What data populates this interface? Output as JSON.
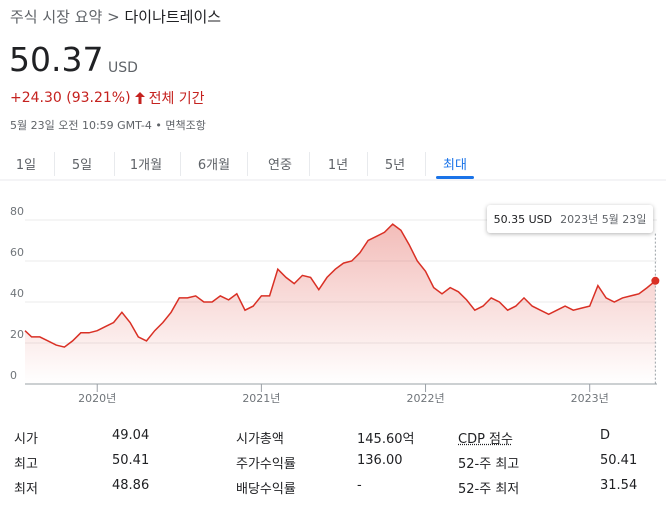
{
  "breadcrumb": {
    "parent": "주식 시장 요약",
    "separator": ">",
    "current": "다이나트레이스"
  },
  "quote": {
    "price": "50.37",
    "currency": "USD",
    "change": "+24.30 (93.21%)",
    "period": "전체 기간",
    "timestamp": "5월 23일 오전 10:59 GMT-4",
    "separator": "•",
    "disclaimer": "면책조항"
  },
  "tabs": [
    "1일",
    "5일",
    "1개월",
    "6개월",
    "연중",
    "1년",
    "5년",
    "최대"
  ],
  "active_tab": 7,
  "chart_data": {
    "type": "line",
    "color": "#d93025",
    "grid": true,
    "x": [
      2019.56,
      2019.6,
      2019.65,
      2019.7,
      2019.75,
      2019.8,
      2019.85,
      2019.9,
      2019.95,
      2020.0,
      2020.05,
      2020.1,
      2020.15,
      2020.2,
      2020.25,
      2020.3,
      2020.35,
      2020.4,
      2020.45,
      2020.5,
      2020.55,
      2020.6,
      2020.65,
      2020.7,
      2020.75,
      2020.8,
      2020.85,
      2020.9,
      2020.95,
      2021.0,
      2021.05,
      2021.1,
      2021.15,
      2021.2,
      2021.25,
      2021.3,
      2021.35,
      2021.4,
      2021.45,
      2021.5,
      2021.55,
      2021.6,
      2021.65,
      2021.7,
      2021.75,
      2021.8,
      2021.85,
      2021.9,
      2021.95,
      2022.0,
      2022.05,
      2022.1,
      2022.15,
      2022.2,
      2022.25,
      2022.3,
      2022.35,
      2022.4,
      2022.45,
      2022.5,
      2022.55,
      2022.6,
      2022.65,
      2022.7,
      2022.75,
      2022.8,
      2022.85,
      2022.9,
      2022.95,
      2023.0,
      2023.05,
      2023.1,
      2023.15,
      2023.2,
      2023.25,
      2023.3,
      2023.35,
      2023.4
    ],
    "values": [
      26,
      23,
      23,
      21,
      19,
      18,
      21,
      25,
      25,
      26,
      28,
      30,
      35,
      30,
      23,
      21,
      26,
      30,
      35,
      42,
      42,
      43,
      40,
      40,
      43,
      41,
      44,
      36,
      38,
      43,
      43,
      56,
      52,
      49,
      53,
      52,
      46,
      52,
      56,
      59,
      60,
      64,
      70,
      72,
      74,
      78,
      75,
      68,
      60,
      55,
      47,
      44,
      47,
      45,
      41,
      36,
      38,
      42,
      40,
      36,
      38,
      42,
      38,
      36,
      34,
      36,
      38,
      36,
      37,
      38,
      48,
      42,
      40,
      42,
      43,
      44,
      47,
      50.35
    ],
    "xlim": [
      2019.56,
      2023.41
    ],
    "ylim": [
      0,
      88
    ],
    "xticks": [
      {
        "value": 2020,
        "label": "2020년"
      },
      {
        "value": 2021,
        "label": "2021년"
      },
      {
        "value": 2022,
        "label": "2022년"
      },
      {
        "value": 2023,
        "label": "2023년"
      }
    ],
    "yticks": [
      0,
      20,
      40,
      60,
      80
    ]
  },
  "tooltip": {
    "price": "50.35 USD",
    "date": "2023년 5월 23일"
  },
  "stats": [
    [
      {
        "label": "시가",
        "value": "49.04"
      },
      {
        "label": "시가총액",
        "value": "145.60억"
      },
      {
        "label": "CDP 점수",
        "value": "D"
      }
    ],
    [
      {
        "label": "최고",
        "value": "50.41"
      },
      {
        "label": "주가수익률",
        "value": "136.00"
      },
      {
        "label": "52-주 최고",
        "value": "50.41"
      }
    ],
    [
      {
        "label": "최저",
        "value": "48.86"
      },
      {
        "label": "배당수익률",
        "value": "-"
      },
      {
        "label": "52-주 최저",
        "value": "31.54"
      }
    ]
  ]
}
